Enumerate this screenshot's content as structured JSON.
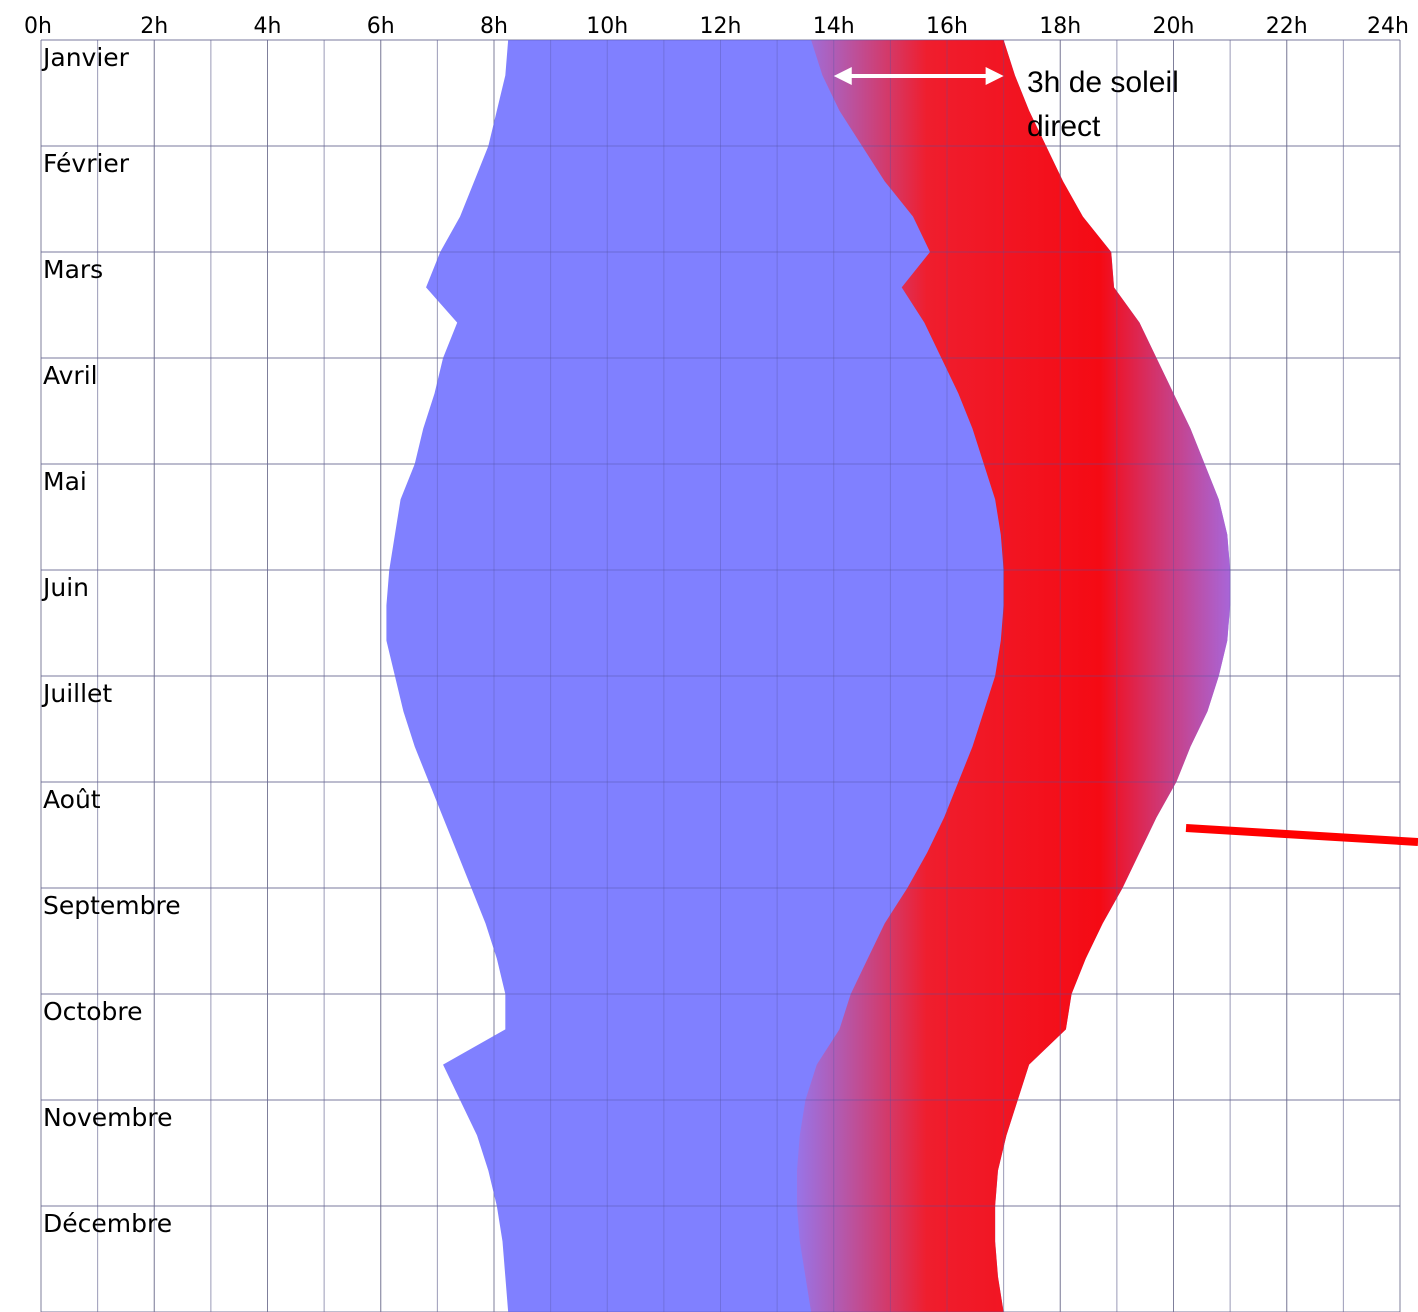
{
  "chart_data": {
    "type": "area",
    "x_ticks": [
      "0h",
      "2h",
      "4h",
      "6h",
      "8h",
      "10h",
      "12h",
      "14h",
      "16h",
      "18h",
      "20h",
      "22h",
      "24h"
    ],
    "xlim": [
      0,
      24
    ],
    "x_unit": "h",
    "months": [
      "Janvier",
      "Février",
      "Mars",
      "Avril",
      "Mai",
      "Juin",
      "Juillet",
      "Août",
      "Septembre",
      "Octobre",
      "Novembre",
      "Décembre"
    ],
    "grid": true,
    "series": [
      {
        "color": "#8080ff",
        "start": [
          8.25,
          8.2,
          8.05,
          7.9,
          7.65,
          7.4,
          7.05,
          6.8,
          7.35,
          7.1,
          6.95,
          6.75,
          6.6,
          6.35,
          6.25,
          6.15,
          6.1,
          6.1,
          6.25,
          6.4,
          6.6,
          6.85,
          7.1,
          7.35,
          7.6,
          7.85,
          8.05,
          8.2,
          8.2,
          7.1,
          7.4,
          7.7,
          7.9,
          8.05,
          8.15,
          8.2,
          8.25
        ],
        "end": [
          17.0,
          17.2,
          17.45,
          17.75,
          18.05,
          18.4,
          18.9,
          18.95,
          19.4,
          19.7,
          20.0,
          20.3,
          20.55,
          20.8,
          20.95,
          21.0,
          21.0,
          20.95,
          20.8,
          20.6,
          20.3,
          20.05,
          19.7,
          19.4,
          19.1,
          18.75,
          18.45,
          18.2,
          18.1,
          17.45,
          17.25,
          17.05,
          16.9,
          16.85,
          16.85,
          16.9,
          17.0
        ]
      },
      {
        "color": "#ff0000",
        "start": [
          13.6,
          13.8,
          14.1,
          14.5,
          14.9,
          15.4,
          15.7,
          15.2,
          15.6,
          15.9,
          16.2,
          16.45,
          16.65,
          16.85,
          16.95,
          17.0,
          17.0,
          16.95,
          16.85,
          16.65,
          16.45,
          16.2,
          15.95,
          15.65,
          15.3,
          14.9,
          14.6,
          14.3,
          14.1,
          13.7,
          13.5,
          13.4,
          13.35,
          13.35,
          13.4,
          13.5,
          13.6
        ],
        "end": [
          17.0,
          17.2,
          17.45,
          17.75,
          18.05,
          18.4,
          18.9,
          18.95,
          19.4,
          19.7,
          20.0,
          20.3,
          20.55,
          20.8,
          20.95,
          21.0,
          21.0,
          20.95,
          20.8,
          20.6,
          20.3,
          20.05,
          19.7,
          19.4,
          19.1,
          18.75,
          18.45,
          18.2,
          18.1,
          17.45,
          17.25,
          17.05,
          16.9,
          16.85,
          16.85,
          16.9,
          17.0
        ]
      }
    ],
    "annotation": {
      "text_line1": "3h de soleil",
      "text_line2": "direct",
      "from_h": 14.0,
      "to_h": 17.0
    },
    "colors": {
      "morning_sun": "#8080ff",
      "direct_sun": "#ff0000",
      "arrow": "#ffffff",
      "pointer": "#ff0000",
      "grid": "#b0b0b0"
    }
  }
}
